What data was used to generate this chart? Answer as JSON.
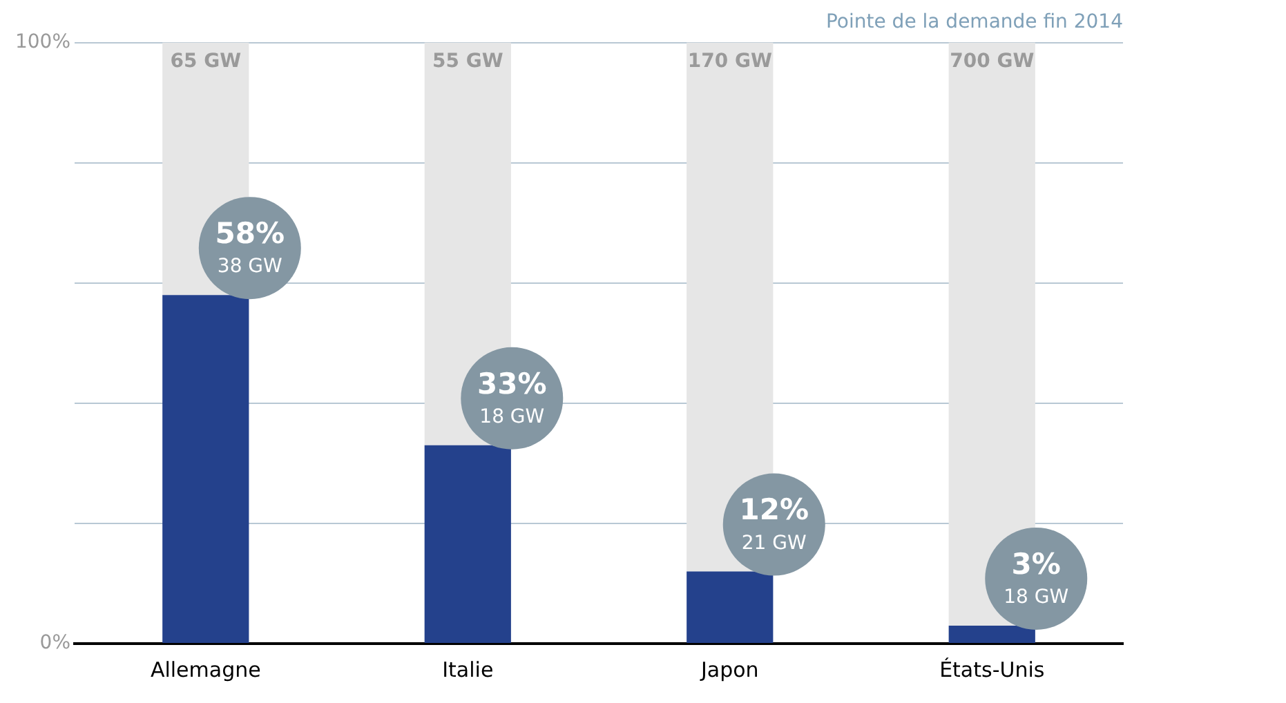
{
  "chart_data": {
    "type": "bar",
    "title": "Pointe de la demande fin 2014",
    "categories": [
      "Allemagne",
      "Italie",
      "Japon",
      "États-Unis"
    ],
    "stacked": true,
    "series": [
      {
        "color": "#24418c",
        "values": [
          58,
          33,
          12,
          3
        ],
        "value_labels": [
          "58%",
          "33%",
          "12%",
          "3%"
        ]
      },
      {
        "color": "#e6e6e6",
        "values": [
          42,
          67,
          88,
          97
        ]
      }
    ],
    "annotations": [
      {
        "text": "65 GW",
        "x": "Allemagne",
        "y": 100
      },
      {
        "text": "55 GW",
        "x": "Italie",
        "y": 100
      },
      {
        "text": "170 GW",
        "x": "Japon",
        "y": 100
      },
      {
        "text": "700 GW",
        "x": "États-Unis",
        "y": 100
      },
      {
        "text": "38 GW",
        "x": "Allemagne",
        "y": 58
      },
      {
        "text": "18 GW",
        "x": "Italie",
        "y": 33
      },
      {
        "text": "21 GW",
        "x": "Japon",
        "y": 12
      },
      {
        "text": "18 GW",
        "x": "États-Unis",
        "y": 3
      }
    ],
    "ylim": [
      0,
      100
    ],
    "yticks": [
      {
        "value": 0,
        "label": "0%"
      },
      {
        "value": 20,
        "label": null
      },
      {
        "value": 40,
        "label": null
      },
      {
        "value": 60,
        "label": null
      },
      {
        "value": 80,
        "label": null
      },
      {
        "value": 100,
        "label": "100%"
      }
    ],
    "grid": "y",
    "legend": false
  }
}
